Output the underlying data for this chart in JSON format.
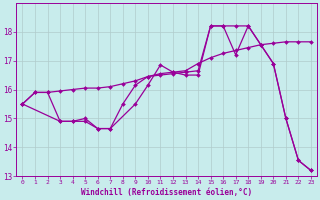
{
  "bg_color": "#c8ecec",
  "line_color": "#990099",
  "grid_color": "#b0cccc",
  "xlim": [
    -0.5,
    23.5
  ],
  "ylim": [
    13,
    19
  ],
  "xticks": [
    0,
    1,
    2,
    3,
    4,
    5,
    6,
    7,
    8,
    9,
    10,
    11,
    12,
    13,
    14,
    15,
    16,
    17,
    18,
    19,
    20,
    21,
    22,
    23
  ],
  "yticks": [
    13,
    14,
    15,
    16,
    17,
    18
  ],
  "xlabel": "Windchill (Refroidissement éolien,°C)",
  "line1_x": [
    0,
    1,
    2,
    3,
    4,
    5,
    6,
    7,
    8,
    9,
    10,
    11,
    12,
    13,
    14,
    15,
    16,
    17,
    18,
    19,
    20,
    21,
    22,
    23
  ],
  "line1_y": [
    15.5,
    15.9,
    15.9,
    15.95,
    16.0,
    16.05,
    16.05,
    16.1,
    16.2,
    16.3,
    16.45,
    16.55,
    16.6,
    16.65,
    16.9,
    17.1,
    17.25,
    17.35,
    17.45,
    17.55,
    17.6,
    17.65,
    17.65,
    17.65
  ],
  "line2_x": [
    0,
    1,
    2,
    3,
    4,
    5,
    6,
    7,
    9,
    10,
    11,
    12,
    13,
    14,
    15,
    16,
    17,
    18,
    19,
    20,
    21,
    22,
    23
  ],
  "line2_y": [
    15.5,
    15.9,
    15.9,
    14.9,
    14.9,
    15.0,
    14.65,
    14.65,
    15.5,
    16.15,
    16.85,
    16.6,
    16.5,
    16.5,
    18.2,
    18.2,
    17.2,
    18.2,
    17.55,
    16.9,
    15.0,
    13.55,
    13.2
  ],
  "line3_x": [
    0,
    3,
    4,
    5,
    6,
    7,
    8,
    9,
    10,
    11,
    12,
    13,
    14,
    15,
    16,
    17,
    18,
    19,
    20,
    21,
    22,
    23
  ],
  "line3_y": [
    15.5,
    14.9,
    14.9,
    14.9,
    14.65,
    14.65,
    15.5,
    16.15,
    16.45,
    16.5,
    16.55,
    16.6,
    16.65,
    18.2,
    18.2,
    18.2,
    18.2,
    17.55,
    16.9,
    15.0,
    13.55,
    13.2
  ]
}
